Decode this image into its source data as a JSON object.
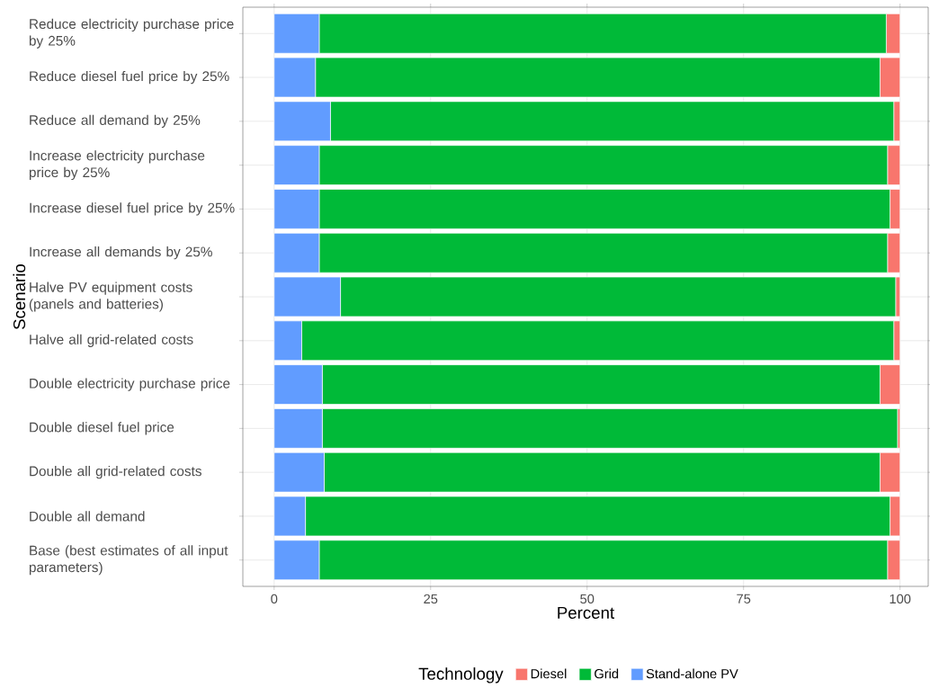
{
  "chart_data": {
    "type": "bar",
    "orientation": "horizontal",
    "stacked": true,
    "xlabel": "Percent",
    "ylabel": "Scenario",
    "legend_title": "Technology",
    "categories": [
      "Reduce electricity purchase price by 25%",
      "Reduce diesel fuel price by 25%",
      "Reduce all demand by 25%",
      "Increase electricity purchase price by 25%",
      "Increase diesel fuel price by 25%",
      "Increase all demands by 25%",
      "Halve PV equipment costs (panels and batteries)",
      "Halve all grid-related costs",
      "Double electricity purchase price",
      "Double diesel fuel price",
      "Double all grid-related costs",
      "Double all demand",
      "Base (best estimates of all input parameters)"
    ],
    "series": [
      {
        "name": "Stand-alone PV",
        "color": "#619cff",
        "values": [
          7.2,
          6.6,
          9.0,
          7.2,
          7.2,
          7.2,
          10.6,
          4.4,
          7.7,
          7.7,
          8.0,
          5.0,
          7.2
        ]
      },
      {
        "name": "Grid",
        "color": "#00ba38",
        "values": [
          90.6,
          90.2,
          90.0,
          90.8,
          91.2,
          90.8,
          88.7,
          94.6,
          89.1,
          91.9,
          88.8,
          93.4,
          90.8
        ]
      },
      {
        "name": "Diesel",
        "color": "#f8766d",
        "values": [
          2.2,
          3.2,
          1.0,
          2.0,
          1.6,
          2.0,
          0.7,
          1.0,
          3.2,
          0.4,
          3.2,
          1.6,
          2.0
        ]
      }
    ],
    "xlim": [
      -5,
      104.5
    ],
    "xticks": [
      0,
      25,
      50,
      75,
      100
    ],
    "grid": true,
    "legend": "bottom"
  }
}
